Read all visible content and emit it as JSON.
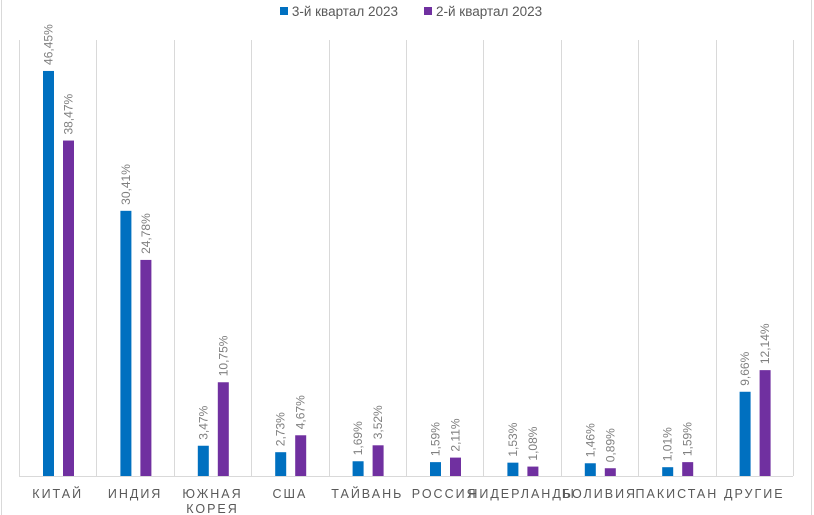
{
  "chart_data": {
    "type": "bar",
    "title": "",
    "xlabel": "",
    "ylabel": "",
    "ylim": [
      0,
      50
    ],
    "grid": "vertical category separators",
    "legend": "top-center",
    "categories": [
      "КИТАЙ",
      "ИНДИЯ",
      "ЮЖНАЯ КОРЕЯ",
      "США",
      "ТАЙВАНЬ",
      "РОССИЯ",
      "НИДЕРЛАНДЫ",
      "БОЛИВИЯ",
      "ПАКИСТАН",
      "ДРУГИЕ"
    ],
    "category_lines": [
      [
        "КИТАЙ"
      ],
      [
        "ИНДИЯ"
      ],
      [
        "ЮЖНАЯ",
        "КОРЕЯ"
      ],
      [
        "США"
      ],
      [
        "ТАЙВАНЬ"
      ],
      [
        "РОССИЯ"
      ],
      [
        "НИДЕРЛАНДЫ"
      ],
      [
        "БОЛИВИЯ"
      ],
      [
        "ПАКИСТАН"
      ],
      [
        "ДРУГИЕ"
      ]
    ],
    "series": [
      {
        "name": "3-й квартал 2023",
        "color": "#0070c0",
        "values": [
          46.45,
          30.41,
          3.47,
          2.73,
          1.69,
          1.59,
          1.53,
          1.46,
          1.01,
          9.66
        ],
        "labels": [
          "46,45%",
          "30,41%",
          "3,47%",
          "2,73%",
          "1,69%",
          "1,59%",
          "1,53%",
          "1,46%",
          "1,01%",
          "9,66%"
        ]
      },
      {
        "name": "2-й квартал 2023",
        "color": "#7030a0",
        "values": [
          38.47,
          24.78,
          10.75,
          4.67,
          3.52,
          2.11,
          1.08,
          0.89,
          1.59,
          12.14
        ],
        "labels": [
          "38,47%",
          "24,78%",
          "10,75%",
          "4,67%",
          "3,52%",
          "2,11%",
          "1,08%",
          "0,89%",
          "1,59%",
          "12,14%"
        ]
      }
    ]
  }
}
